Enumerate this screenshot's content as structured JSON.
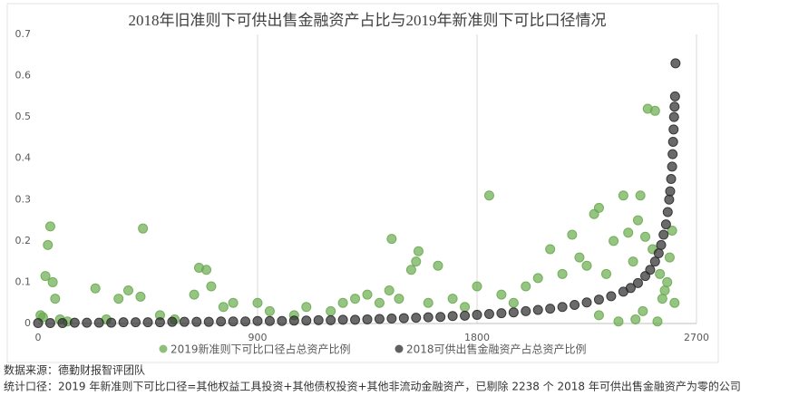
{
  "chart_data": {
    "type": "scatter",
    "title": "2018年旧准则下可供出售金融资产占比与2019年新准则下可比口径情况",
    "xlim": [
      0,
      2700
    ],
    "xticks": [
      0,
      900,
      1800,
      2700
    ],
    "ylim": [
      0,
      0.7
    ],
    "yticks": [
      0,
      0.1,
      0.2,
      0.3,
      0.4,
      0.5,
      0.6,
      0.7
    ],
    "grid": true,
    "legend": "bottom",
    "series": [
      {
        "name": "2019新准则下可比口径占总资产比例",
        "color": "#6aab4f",
        "x": [
          10,
          20,
          30,
          40,
          50,
          60,
          70,
          90,
          120,
          235,
          280,
          330,
          370,
          420,
          430,
          500,
          560,
          640,
          660,
          690,
          710,
          760,
          800,
          900,
          950,
          1050,
          1100,
          1200,
          1250,
          1300,
          1350,
          1400,
          1440,
          1450,
          1480,
          1530,
          1550,
          1560,
          1600,
          1640,
          1700,
          1750,
          1800,
          1850,
          1900,
          1950,
          2000,
          2050,
          2100,
          2150,
          2190,
          2220,
          2250,
          2280,
          2300,
          2330,
          2360,
          2400,
          2420,
          2440,
          2460,
          2470,
          2490,
          2500,
          2520,
          2530,
          2550,
          2570,
          2590,
          2600,
          2610,
          2300,
          2380,
          2450,
          2480,
          2540,
          2560,
          2580
        ],
        "values": [
          0.02,
          0.015,
          0.115,
          0.19,
          0.235,
          0.1,
          0.06,
          0.01,
          0.005,
          0.085,
          0.01,
          0.06,
          0.08,
          0.065,
          0.23,
          0.02,
          0.01,
          0.07,
          0.135,
          0.13,
          0.09,
          0.04,
          0.05,
          0.05,
          0.03,
          0.02,
          0.04,
          0.03,
          0.05,
          0.06,
          0.07,
          0.05,
          0.08,
          0.205,
          0.06,
          0.13,
          0.15,
          0.175,
          0.05,
          0.14,
          0.06,
          0.04,
          0.09,
          0.31,
          0.07,
          0.05,
          0.09,
          0.11,
          0.18,
          0.12,
          0.215,
          0.16,
          0.14,
          0.265,
          0.28,
          0.12,
          0.2,
          0.31,
          0.22,
          0.15,
          0.25,
          0.31,
          0.21,
          0.52,
          0.18,
          0.515,
          0.12,
          0.08,
          0.16,
          0.225,
          0.05,
          0.02,
          0.005,
          0.01,
          0.03,
          0.005,
          0.06,
          0.1
        ]
      },
      {
        "name": "2018可供出售金融资产占总资产比例",
        "color": "#2b2b2b",
        "x": [
          0,
          50,
          100,
          150,
          200,
          250,
          300,
          350,
          400,
          450,
          500,
          550,
          600,
          650,
          700,
          750,
          800,
          850,
          900,
          950,
          1000,
          1050,
          1100,
          1150,
          1200,
          1250,
          1300,
          1350,
          1400,
          1450,
          1500,
          1550,
          1600,
          1650,
          1700,
          1750,
          1800,
          1850,
          1900,
          1950,
          2000,
          2050,
          2100,
          2150,
          2200,
          2250,
          2300,
          2350,
          2400,
          2430,
          2460,
          2490,
          2510,
          2530,
          2545,
          2555,
          2565,
          2575,
          2582,
          2588,
          2592,
          2596,
          2600,
          2602,
          2604,
          2606,
          2608,
          2610,
          2612,
          2614
        ],
        "values": [
          0.001,
          0.001,
          0.001,
          0.002,
          0.002,
          0.002,
          0.002,
          0.003,
          0.003,
          0.003,
          0.003,
          0.004,
          0.004,
          0.004,
          0.004,
          0.005,
          0.005,
          0.005,
          0.006,
          0.006,
          0.006,
          0.007,
          0.007,
          0.008,
          0.008,
          0.009,
          0.009,
          0.01,
          0.011,
          0.012,
          0.013,
          0.014,
          0.015,
          0.016,
          0.018,
          0.019,
          0.021,
          0.023,
          0.025,
          0.027,
          0.03,
          0.033,
          0.036,
          0.04,
          0.045,
          0.051,
          0.058,
          0.066,
          0.077,
          0.086,
          0.098,
          0.115,
          0.13,
          0.15,
          0.17,
          0.19,
          0.215,
          0.24,
          0.27,
          0.3,
          0.32,
          0.35,
          0.38,
          0.41,
          0.44,
          0.47,
          0.5,
          0.525,
          0.55,
          0.63
        ]
      }
    ]
  },
  "footnotes": [
    "数据来源：德勤财报智评团队",
    "统计口径：2019 年新准则下可比口径=其他权益工具投资+其他债权投资+其他非流动金融资产，已剔除 2238 个 2018 年可供出售金融资产为零的公司"
  ]
}
